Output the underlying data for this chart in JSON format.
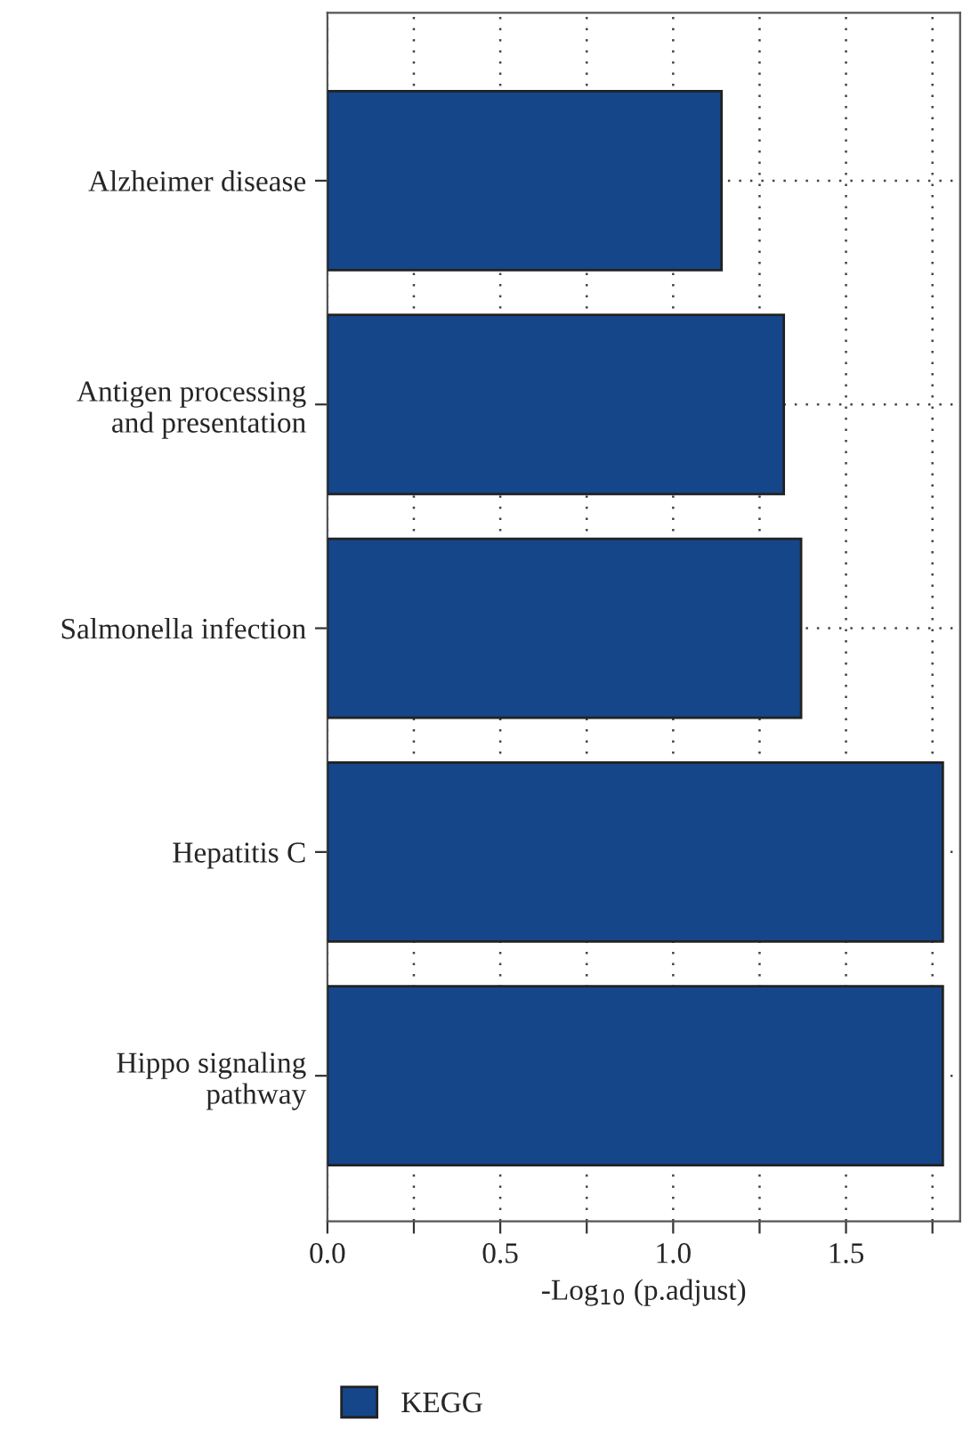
{
  "chart_data": {
    "type": "bar",
    "orientation": "horizontal",
    "categories": [
      "Alzheimer disease",
      "Antigen processing\nand presentation",
      "Salmonella infection",
      "Hepatitis C",
      "Hippo signaling\npathway"
    ],
    "series": [
      {
        "name": "KEGG",
        "color": "#15468a",
        "values": [
          1.14,
          1.32,
          1.37,
          1.78,
          1.78
        ]
      }
    ],
    "xlabel": "-Log$_{10}$ (p.adjust)",
    "xlim": [
      0,
      1.83
    ],
    "xticks": [
      {
        "value": 0,
        "label": "0.0"
      },
      {
        "value": 0.25,
        "label": null
      },
      {
        "value": 0.5,
        "label": "0.5"
      },
      {
        "value": 0.75,
        "label": null
      },
      {
        "value": 1,
        "label": "1.0"
      },
      {
        "value": 1.25,
        "label": null
      },
      {
        "value": 1.5,
        "label": "1.5"
      },
      {
        "value": 1.75,
        "label": null
      }
    ],
    "grid": true,
    "legend": "bottom left"
  }
}
